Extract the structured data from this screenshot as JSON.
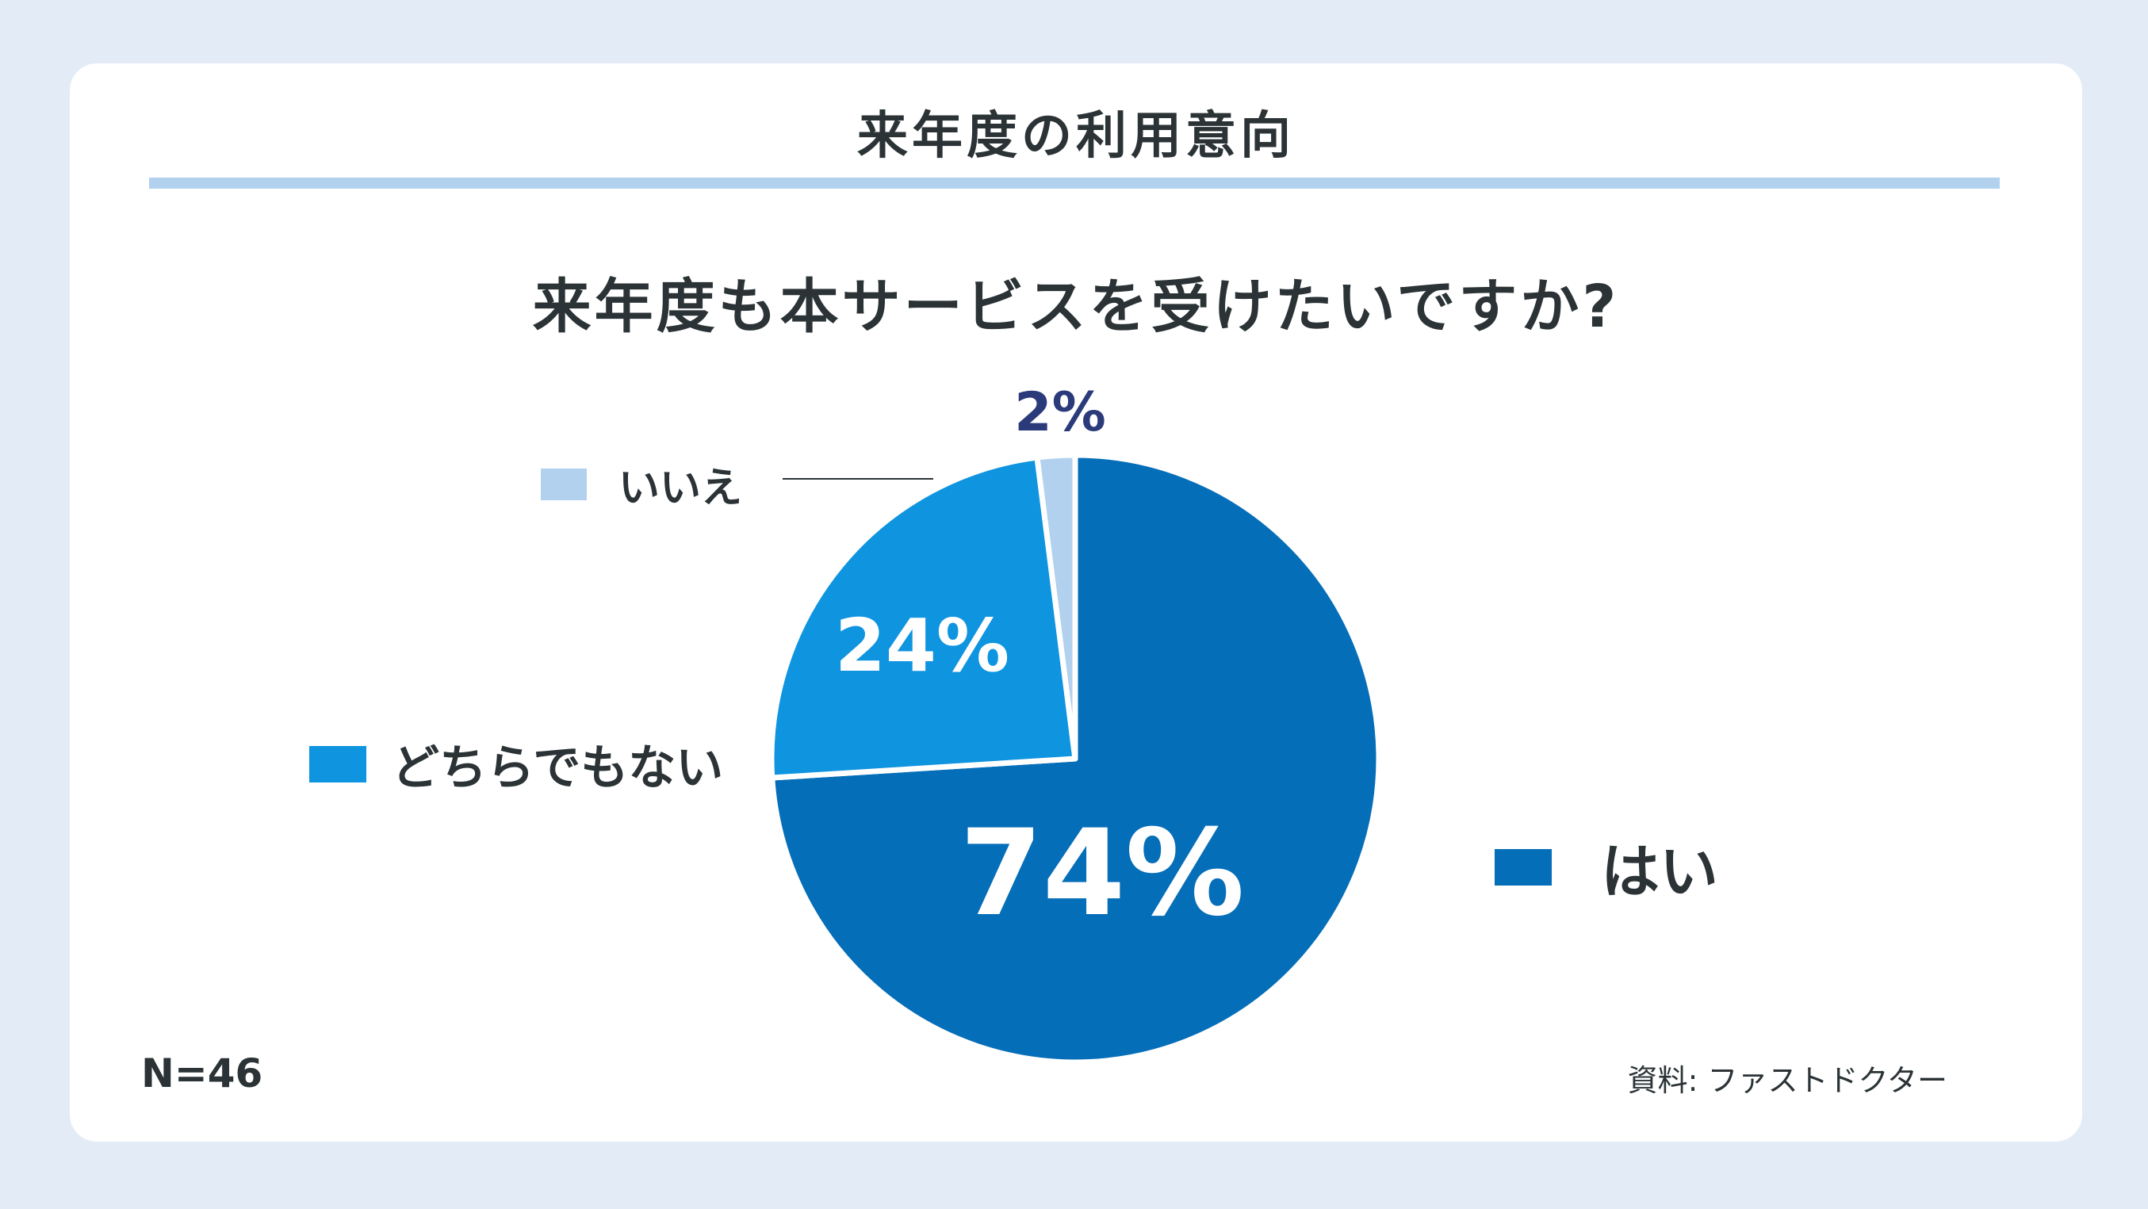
{
  "header": {
    "title": "来年度の利用意向"
  },
  "chart_data": {
    "type": "pie",
    "title": "来年度も本サービスを受けたいですか?",
    "slices": [
      {
        "label": "はい",
        "value": 74,
        "value_label": "74%",
        "color": "#056eb8"
      },
      {
        "label": "どちらでもない",
        "value": 24,
        "value_label": "24%",
        "color": "#0f94e0"
      },
      {
        "label": "いいえ",
        "value": 2,
        "value_label": "2%",
        "color": "#b1d1ee"
      }
    ],
    "sample_size": "N=46",
    "source": "資料: ファストドクター"
  },
  "colors": {
    "background": "#e3ebf7",
    "card": "#ffffff",
    "text": "#2b3336",
    "small_label": "#2b3a7a"
  }
}
